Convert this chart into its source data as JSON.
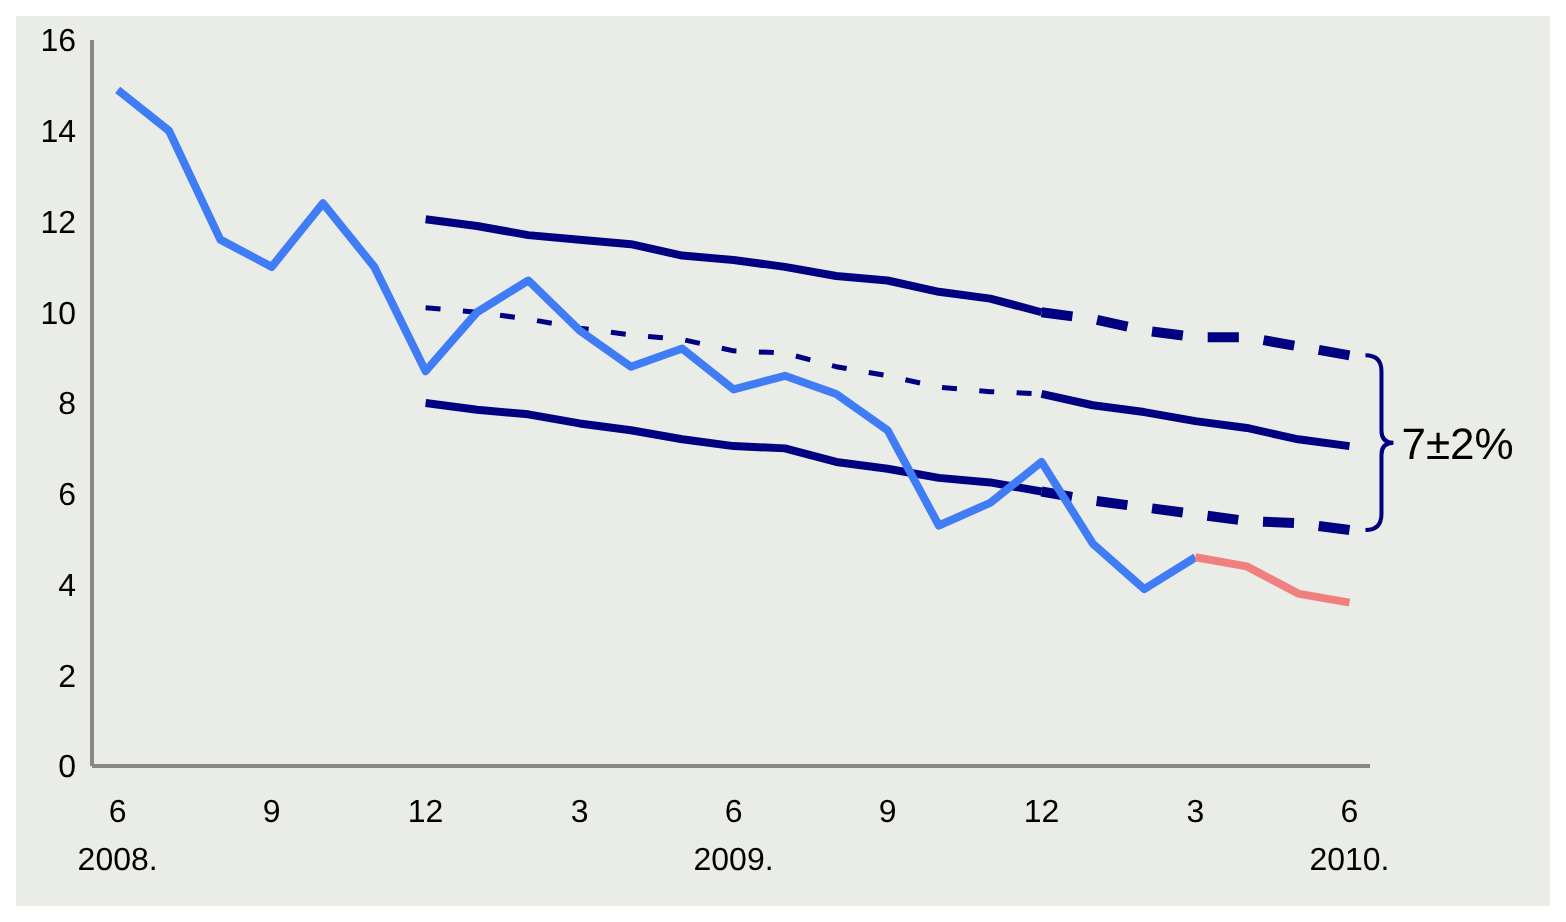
{
  "chart_data": {
    "type": "line",
    "xlim": [
      "2008-05-16",
      "2010-06-13"
    ],
    "xticks": [
      {
        "value": "2008-06",
        "label": "6\n2008."
      },
      {
        "value": "2008-09",
        "label": "9"
      },
      {
        "value": "2008-12",
        "label": "12"
      },
      {
        "value": "2009-03",
        "label": "3"
      },
      {
        "value": "2009-06",
        "label": "6\n2009."
      },
      {
        "value": "2009-09",
        "label": "9"
      },
      {
        "value": "2009-12",
        "label": "12"
      },
      {
        "value": "2010-03",
        "label": "3"
      },
      {
        "value": "2010-06",
        "label": "6\n2010."
      }
    ],
    "ylim": [
      0,
      16
    ],
    "yticks": [
      0,
      2,
      4,
      6,
      8,
      10,
      12,
      14,
      16
    ],
    "grid": false,
    "annotations": [
      "7±2%"
    ],
    "series": [
      {
        "color": "#000080",
        "line_style": "solid",
        "x": [
          "2008-12",
          "2009-01",
          "2009-02",
          "2009-03",
          "2009-04",
          "2009-05",
          "2009-06",
          "2009-07",
          "2009-08",
          "2009-09",
          "2009-10",
          "2009-11",
          "2009-12"
        ],
        "values": [
          12.05,
          11.9,
          11.7,
          11.6,
          11.5,
          11.25,
          11.15,
          11.0,
          10.8,
          10.7,
          10.45,
          10.3,
          10.0
        ]
      },
      {
        "color": "#000080",
        "line_style": "dashed",
        "x": [
          "2009-12",
          "2010-01",
          "2010-02",
          "2010-03",
          "2010-04",
          "2010-05",
          "2010-06"
        ],
        "values": [
          10.0,
          9.85,
          9.6,
          9.45,
          9.45,
          9.25,
          9.05
        ]
      },
      {
        "color": "#000080",
        "line_style": "dotted",
        "x": [
          "2008-12",
          "2009-01",
          "2009-02",
          "2009-03",
          "2009-04",
          "2009-05",
          "2009-06",
          "2009-07",
          "2009-08",
          "2009-09",
          "2009-10",
          "2009-11",
          "2009-12"
        ],
        "values": [
          10.1,
          10.0,
          9.85,
          9.65,
          9.5,
          9.4,
          9.15,
          9.1,
          8.8,
          8.6,
          8.35,
          8.25,
          8.2
        ]
      },
      {
        "color": "#000080",
        "line_style": "solid",
        "x": [
          "2009-12",
          "2010-01",
          "2010-02",
          "2010-03",
          "2010-04",
          "2010-05",
          "2010-06"
        ],
        "values": [
          8.2,
          7.95,
          7.8,
          7.6,
          7.45,
          7.2,
          7.05
        ]
      },
      {
        "color": "#000080",
        "line_style": "solid",
        "x": [
          "2008-12",
          "2009-01",
          "2009-02",
          "2009-03",
          "2009-04",
          "2009-05",
          "2009-06",
          "2009-07",
          "2009-08",
          "2009-09",
          "2009-10",
          "2009-11",
          "2009-12"
        ],
        "values": [
          8.0,
          7.85,
          7.75,
          7.55,
          7.4,
          7.2,
          7.05,
          7.0,
          6.7,
          6.55,
          6.35,
          6.25,
          6.05
        ]
      },
      {
        "color": "#000080",
        "line_style": "dashed",
        "x": [
          "2009-12",
          "2010-01",
          "2010-02",
          "2010-03",
          "2010-04",
          "2010-05",
          "2010-06"
        ],
        "values": [
          6.05,
          5.85,
          5.7,
          5.55,
          5.4,
          5.35,
          5.2
        ]
      },
      {
        "color": "#3f7cf5",
        "line_style": "solid",
        "x": [
          "2008-06",
          "2008-07",
          "2008-08",
          "2008-09",
          "2008-10",
          "2008-11",
          "2008-12",
          "2009-01",
          "2009-02",
          "2009-03",
          "2009-04",
          "2009-05",
          "2009-06",
          "2009-07",
          "2009-08",
          "2009-09",
          "2009-10",
          "2009-11",
          "2009-12",
          "2010-01",
          "2010-02",
          "2010-03"
        ],
        "values": [
          14.9,
          14.0,
          11.6,
          11.0,
          12.4,
          11.0,
          8.7,
          10.0,
          10.7,
          9.6,
          8.8,
          9.2,
          8.3,
          8.6,
          8.2,
          7.4,
          5.3,
          5.8,
          6.7,
          4.9,
          3.9,
          4.6
        ]
      },
      {
        "color": "#f08080",
        "line_style": "solid",
        "x": [
          "2010-03",
          "2010-04",
          "2010-05",
          "2010-06"
        ],
        "values": [
          4.6,
          4.4,
          3.8,
          3.6
        ]
      }
    ]
  }
}
